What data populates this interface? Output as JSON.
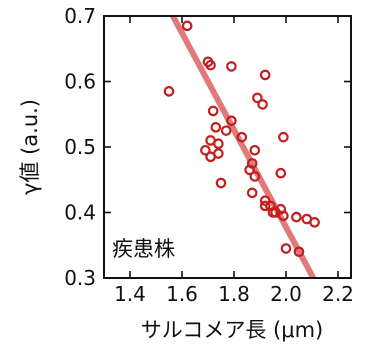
{
  "chart_data": {
    "type": "scatter",
    "title": "",
    "xlabel": "サルコメア長 (μm)",
    "ylabel": "γ値 (a.u.)",
    "annotation": "疾患株",
    "xlim": [
      1.3,
      2.25
    ],
    "ylim": [
      0.3,
      0.7
    ],
    "x_ticks": [
      1.4,
      1.6,
      1.8,
      2.0,
      2.2
    ],
    "x_tick_labels": [
      "1.4",
      "1.6",
      "1.8",
      "2.0",
      "2.2"
    ],
    "y_ticks": [
      0.3,
      0.4,
      0.5,
      0.6,
      0.7
    ],
    "y_tick_labels": [
      "0.3",
      "0.4",
      "0.5",
      "0.6",
      "0.7"
    ],
    "grid": false,
    "colors": {
      "points": "#c41e1e",
      "fit": "#e07a7a"
    },
    "series": [
      {
        "x": [
          1.62,
          1.55,
          1.7,
          1.71,
          1.79,
          1.92,
          1.89,
          1.91,
          1.72,
          1.73,
          1.77,
          1.71,
          1.74,
          1.79,
          1.83,
          1.69,
          1.71,
          1.74,
          1.88,
          1.87,
          1.86,
          1.99,
          1.75,
          1.88,
          1.87,
          1.92,
          1.94,
          1.96,
          1.98,
          1.99,
          2.04,
          2.08,
          2.11,
          1.92,
          1.98,
          2.0,
          2.05,
          1.95
        ],
        "y": [
          0.685,
          0.585,
          0.63,
          0.625,
          0.623,
          0.61,
          0.575,
          0.565,
          0.555,
          0.53,
          0.525,
          0.51,
          0.505,
          0.54,
          0.515,
          0.495,
          0.485,
          0.49,
          0.495,
          0.475,
          0.465,
          0.515,
          0.445,
          0.455,
          0.43,
          0.418,
          0.41,
          0.4,
          0.405,
          0.395,
          0.393,
          0.39,
          0.385,
          0.41,
          0.46,
          0.345,
          0.34,
          0.4
        ]
      }
    ],
    "fit_line": {
      "x": [
        1.565,
        2.105
      ],
      "y": [
        0.7,
        0.3
      ]
    }
  }
}
